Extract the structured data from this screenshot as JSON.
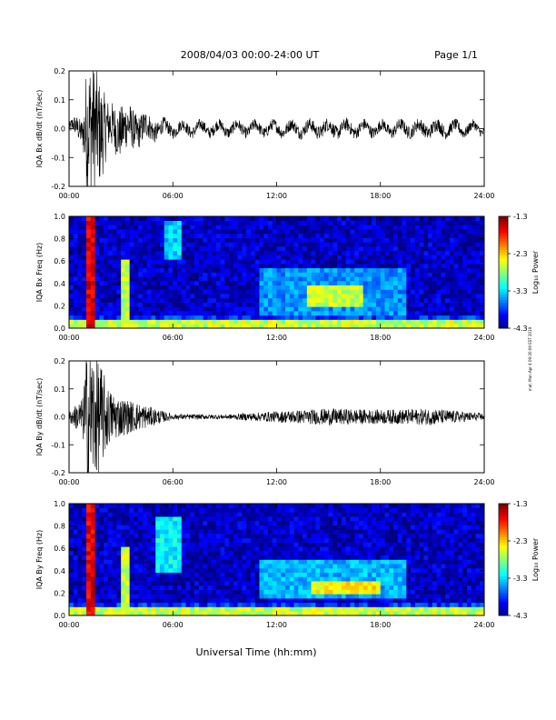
{
  "header": {
    "title": "2008/04/03  00:00-24:00 UT",
    "page": "Page 1/1"
  },
  "chart_data": [
    {
      "type": "line",
      "id": "bx-dbdt",
      "ylabel": "IQA Bx dB/dt (nT/sec)",
      "ylim": [
        -0.2,
        0.2
      ],
      "yticks": [
        -0.2,
        -0.1,
        0.0,
        0.1,
        0.2
      ],
      "yticklabels": [
        "-0.2",
        "-0.1",
        "0.0",
        "0.1",
        "0.2"
      ],
      "xlim": [
        0,
        24
      ],
      "xticks": [
        0,
        6,
        12,
        18,
        24
      ],
      "xticklabels": [
        "00:00",
        "06:00",
        "12:00",
        "18:00",
        "24:00"
      ],
      "envelope": {
        "hours": [
          0.0,
          0.8,
          1.0,
          1.3,
          1.8,
          2.3,
          3.0,
          4.0,
          5.2,
          6.0,
          9.0,
          12.0,
          15.0,
          18.0,
          21.0,
          24.0
        ],
        "amp": [
          0.02,
          0.05,
          0.22,
          0.24,
          0.18,
          0.08,
          0.09,
          0.06,
          0.03,
          0.02,
          0.02,
          0.02,
          0.025,
          0.02,
          0.025,
          0.015
        ],
        "offset_wave": 0.015
      }
    },
    {
      "type": "heatmap",
      "id": "bx-freq",
      "ylabel": "IQA Bx Freq (Hz)",
      "ylim": [
        0.0,
        1.0
      ],
      "yticks": [
        0.0,
        0.2,
        0.4,
        0.6,
        0.8,
        1.0
      ],
      "yticklabels": [
        "0.0",
        "0.2",
        "0.4",
        "0.6",
        "0.8",
        "1.0"
      ],
      "xlim": [
        0,
        24
      ],
      "xticks": [
        0,
        6,
        12,
        18,
        24
      ],
      "xticklabels": [
        "00:00",
        "06:00",
        "12:00",
        "18:00",
        "24:00"
      ],
      "colorbar": {
        "label": "Log₁₀ Power",
        "ticks": [
          "-1.3",
          "-2.3",
          "-3.3",
          "-4.3"
        ],
        "range": [
          -4.3,
          -1.3
        ]
      },
      "features": [
        {
          "t0": 1.1,
          "t1": 1.4,
          "f0": 0.0,
          "f1": 1.0,
          "level": -1.6
        },
        {
          "t0": 3.1,
          "t1": 3.4,
          "f0": 0.0,
          "f1": 0.6,
          "level": -2.6
        },
        {
          "t0": 5.6,
          "t1": 6.6,
          "f0": 0.6,
          "f1": 0.95,
          "level": -3.3
        },
        {
          "t0": 13.8,
          "t1": 17.0,
          "f0": 0.18,
          "f1": 0.4,
          "level": -2.6
        },
        {
          "t0": 11.0,
          "t1": 19.5,
          "f0": 0.1,
          "f1": 0.55,
          "level": -3.5
        }
      ]
    },
    {
      "type": "line",
      "id": "by-dbdt",
      "ylabel": "IQA By dB/dt (nT/sec)",
      "ylim": [
        -0.2,
        0.2
      ],
      "yticks": [
        -0.2,
        -0.1,
        0.0,
        0.1,
        0.2
      ],
      "yticklabels": [
        "-0.2",
        "-0.1",
        "0.0",
        "0.1",
        "0.2"
      ],
      "xlim": [
        0,
        24
      ],
      "xticks": [
        0,
        6,
        12,
        18,
        24
      ],
      "xticklabels": [
        "00:00",
        "06:00",
        "12:00",
        "18:00",
        "24:00"
      ],
      "envelope": {
        "hours": [
          0.0,
          0.8,
          1.0,
          1.3,
          1.8,
          2.3,
          3.0,
          4.0,
          5.2,
          6.0,
          9.0,
          12.0,
          15.0,
          18.0,
          21.0,
          24.0
        ],
        "amp": [
          0.02,
          0.07,
          0.25,
          0.25,
          0.2,
          0.1,
          0.07,
          0.05,
          0.025,
          0.01,
          0.008,
          0.02,
          0.03,
          0.025,
          0.03,
          0.012
        ],
        "offset_wave": 0.0
      }
    },
    {
      "type": "heatmap",
      "id": "by-freq",
      "ylabel": "IQA By Freq (Hz)",
      "ylim": [
        0.0,
        1.0
      ],
      "yticks": [
        0.0,
        0.2,
        0.4,
        0.6,
        0.8,
        1.0
      ],
      "yticklabels": [
        "0.0",
        "0.2",
        "0.4",
        "0.6",
        "0.8",
        "1.0"
      ],
      "xlim": [
        0,
        24
      ],
      "xticks": [
        0,
        6,
        12,
        18,
        24
      ],
      "xticklabels": [
        "00:00",
        "06:00",
        "12:00",
        "18:00",
        "24:00"
      ],
      "colorbar": {
        "label": "Log₁₀ Power",
        "ticks": [
          "-1.3",
          "-2.3",
          "-3.3",
          "-4.3"
        ],
        "range": [
          -4.3,
          -1.3
        ]
      },
      "features": [
        {
          "t0": 1.1,
          "t1": 1.4,
          "f0": 0.0,
          "f1": 1.0,
          "level": -1.6
        },
        {
          "t0": 3.1,
          "t1": 3.4,
          "f0": 0.0,
          "f1": 0.6,
          "level": -2.6
        },
        {
          "t0": 5.0,
          "t1": 6.6,
          "f0": 0.4,
          "f1": 0.9,
          "level": -3.2
        },
        {
          "t0": 14.0,
          "t1": 18.0,
          "f0": 0.18,
          "f1": 0.32,
          "level": -2.4
        },
        {
          "t0": 11.0,
          "t1": 19.5,
          "f0": 0.15,
          "f1": 0.5,
          "level": -3.4
        }
      ]
    }
  ],
  "xaxis_label": "Universal Time (hh:mm)",
  "footer_note": "mat. Mon Apr 4 09:30:09 EST 2019"
}
